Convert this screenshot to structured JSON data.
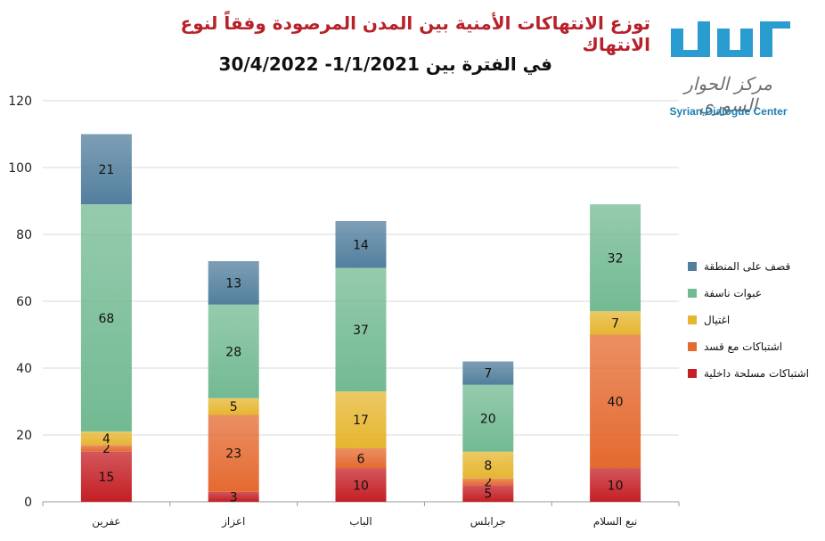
{
  "title": "توزع الانتهاكات الأمنية بين المدن المرصودة وفقاً لنوع الانتهاك",
  "subtitle": "في الفترة بين 1/1/2021- 30/4/2022",
  "logo": {
    "ar": "مركز الحوار السوري",
    "en": "Syrian Dialogue Center"
  },
  "colors": {
    "internal_clashes": "#c41f24",
    "clashes_shelling": "#e46a30",
    "assassination": "#e6b630",
    "ied": "#72ba92",
    "shelling": "#527f9d"
  },
  "chart_data": {
    "type": "bar",
    "stacked": true,
    "categories": [
      "عفرين",
      "اعزاز",
      "الباب",
      "جرابلس",
      "نبع السلام"
    ],
    "series": [
      {
        "name": "اشتباكات مسلحة داخلية",
        "values": [
          15,
          3,
          10,
          5,
          10
        ]
      },
      {
        "name": "اشتباكات مع قسد",
        "values": [
          2,
          23,
          6,
          2,
          40
        ]
      },
      {
        "name": "اغتيال",
        "values": [
          4,
          5,
          17,
          8,
          7
        ]
      },
      {
        "name": "عبوات ناسفة",
        "values": [
          68,
          28,
          37,
          20,
          32
        ]
      },
      {
        "name": "قصف على المنطقة",
        "values": [
          21,
          13,
          14,
          7,
          0
        ]
      }
    ],
    "ylim": [
      0,
      120
    ],
    "yticks": [
      0,
      20,
      40,
      60,
      80,
      100,
      120
    ],
    "grid": true,
    "legend": "right",
    "legend_order": [
      "قصف على المنطقة",
      "عبوات ناسفة",
      "اغتيال",
      "اشتباكات مع قسد",
      "اشتباكات مسلحة داخلية"
    ]
  }
}
